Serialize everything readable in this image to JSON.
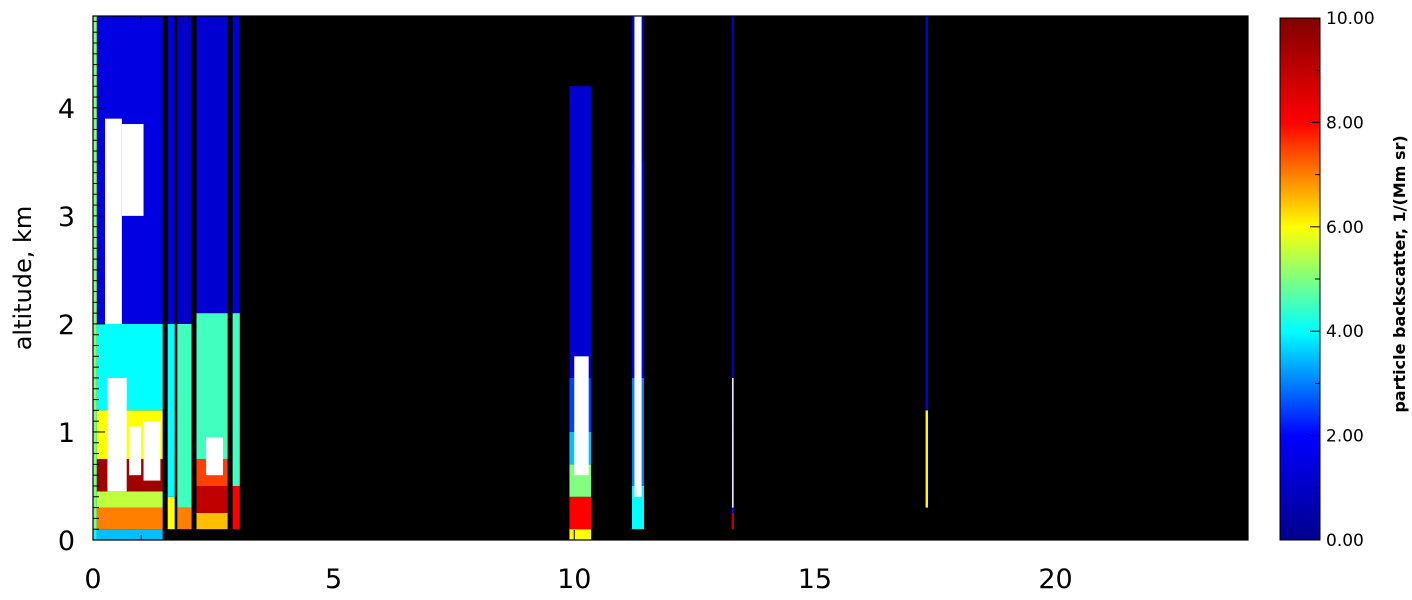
{
  "chart_data": {
    "type": "heatmap",
    "title": "",
    "xlabel": "",
    "ylabel": "altitude, km",
    "xlim": [
      0,
      24
    ],
    "ylim": [
      0,
      4.85
    ],
    "x_ticks": [
      "0",
      "5",
      "10",
      "15",
      "20"
    ],
    "y_ticks": [
      "0",
      "1",
      "2",
      "3",
      "4"
    ],
    "background": "#000000",
    "colorbar": {
      "label": "particle backscatter, 1/(Mm sr)",
      "range": [
        0,
        10
      ],
      "ticks": [
        "0.00",
        "2.00",
        "4.00",
        "6.00",
        "8.00",
        "10.00"
      ],
      "colors": [
        "#00008c",
        "#0000ff",
        "#00ffff",
        "#ffff00",
        "#ff0000",
        "#800000"
      ]
    },
    "data_columns": [
      {
        "x0": 0.0,
        "x1": 0.08,
        "profile": [
          [
            0.0,
            0.1,
            4.0
          ],
          [
            0.1,
            4.85,
            5.0
          ]
        ]
      },
      {
        "x0": 0.08,
        "x1": 1.45,
        "profile": [
          [
            0.0,
            0.1,
            3.5
          ],
          [
            0.1,
            0.3,
            7.0
          ],
          [
            0.3,
            0.45,
            5.5
          ],
          [
            0.45,
            0.75,
            9.5
          ],
          [
            0.75,
            1.2,
            6.0
          ],
          [
            1.2,
            2.0,
            4.0
          ],
          [
            2.0,
            4.85,
            1.5
          ]
        ]
      },
      {
        "x0": 1.55,
        "x1": 1.7,
        "profile": [
          [
            0.1,
            0.4,
            6.0
          ],
          [
            0.4,
            2.0,
            4.0
          ],
          [
            2.0,
            4.85,
            1.2
          ]
        ]
      },
      {
        "x0": 1.75,
        "x1": 2.05,
        "profile": [
          [
            0.1,
            0.3,
            7.0
          ],
          [
            0.3,
            2.0,
            4.5
          ],
          [
            2.0,
            4.85,
            1.0
          ]
        ]
      },
      {
        "x0": 2.15,
        "x1": 2.8,
        "profile": [
          [
            0.1,
            0.25,
            6.5
          ],
          [
            0.25,
            0.5,
            9.0
          ],
          [
            0.5,
            0.75,
            7.5
          ],
          [
            0.75,
            2.1,
            4.5
          ],
          [
            2.1,
            4.85,
            1.2
          ]
        ]
      },
      {
        "x0": 2.9,
        "x1": 3.05,
        "profile": [
          [
            0.1,
            0.5,
            8.0
          ],
          [
            0.5,
            2.1,
            4.5
          ],
          [
            2.1,
            4.85,
            1.2
          ]
        ]
      },
      {
        "x0": 9.9,
        "x1": 10.35,
        "profile": [
          [
            0.0,
            0.1,
            6.0
          ],
          [
            0.1,
            0.4,
            8.0
          ],
          [
            0.4,
            0.7,
            5.0
          ],
          [
            0.7,
            1.0,
            3.5
          ],
          [
            1.0,
            1.5,
            2.5
          ],
          [
            1.5,
            4.2,
            1.2
          ]
        ]
      },
      {
        "x0": 11.2,
        "x1": 11.45,
        "profile": [
          [
            0.1,
            0.5,
            4.0
          ],
          [
            0.5,
            1.5,
            3.0
          ],
          [
            1.5,
            3.5,
            2.0
          ],
          [
            3.5,
            4.85,
            1.0
          ]
        ]
      },
      {
        "x0": 13.27,
        "x1": 13.32,
        "profile": [
          [
            0.1,
            0.25,
            9.0
          ],
          [
            0.25,
            1.0,
            2.0
          ],
          [
            1.0,
            4.85,
            1.0
          ]
        ]
      },
      {
        "x0": 17.3,
        "x1": 17.35,
        "profile": [
          [
            0.3,
            1.2,
            6.0
          ],
          [
            1.2,
            4.85,
            1.5
          ]
        ]
      }
    ],
    "saturated_regions": [
      {
        "x0": 0.25,
        "x1": 0.6,
        "y0": 2.0,
        "y1": 3.9
      },
      {
        "x0": 0.6,
        "x1": 1.05,
        "y0": 3.0,
        "y1": 3.85
      },
      {
        "x0": 0.3,
        "x1": 0.7,
        "y0": 0.45,
        "y1": 1.5
      },
      {
        "x0": 0.75,
        "x1": 1.0,
        "y0": 0.6,
        "y1": 1.05
      },
      {
        "x0": 1.05,
        "x1": 1.4,
        "y0": 0.55,
        "y1": 1.1
      },
      {
        "x0": 2.35,
        "x1": 2.7,
        "y0": 0.6,
        "y1": 0.95
      },
      {
        "x0": 10.0,
        "x1": 10.3,
        "y0": 0.6,
        "y1": 1.7
      },
      {
        "x0": 11.25,
        "x1": 11.4,
        "y0": 0.4,
        "y1": 4.85
      },
      {
        "x0": 13.28,
        "x1": 13.31,
        "y0": 0.3,
        "y1": 1.5
      }
    ],
    "gaps": [
      {
        "x0": 1.45,
        "x1": 1.55
      },
      {
        "x0": 1.7,
        "x1": 1.75
      },
      {
        "x0": 2.05,
        "x1": 2.15
      },
      {
        "x0": 2.8,
        "x1": 2.9
      }
    ]
  }
}
